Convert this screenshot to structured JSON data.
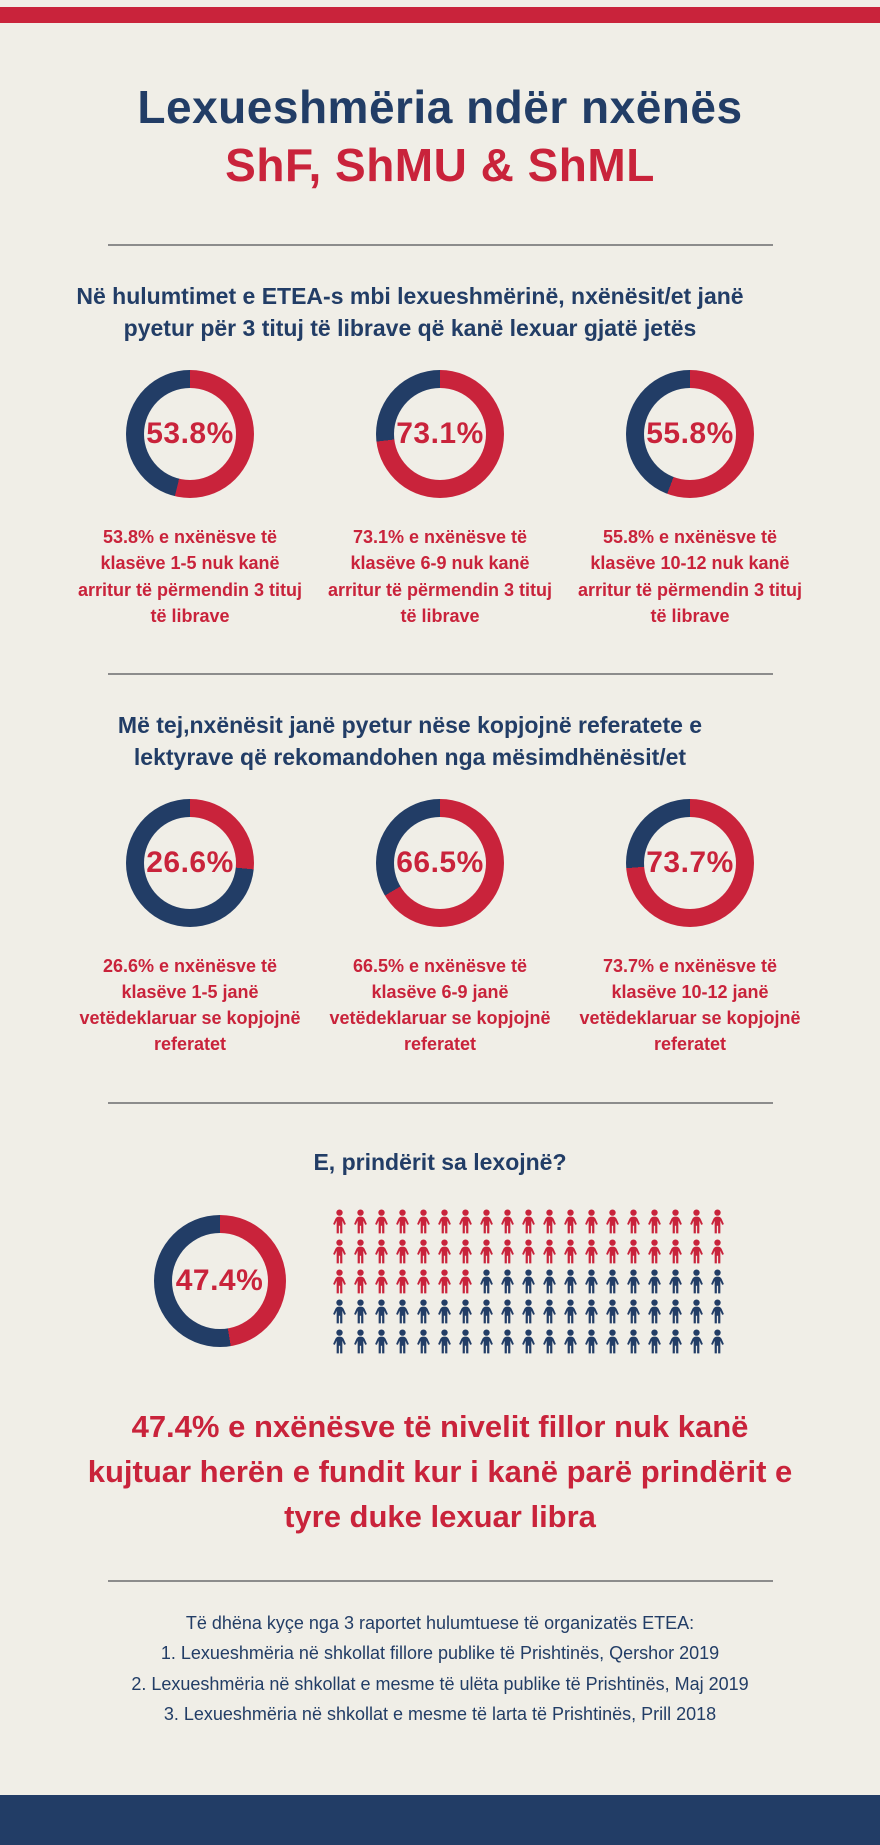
{
  "colors": {
    "red": "#c9233b",
    "navy": "#223d66",
    "background": "#f0eee7",
    "divider": "#8c8c8c"
  },
  "header": {
    "title_line1": "Lexueshmëria ndër nxënës",
    "title_line2": "ShF, ShMU & ShML"
  },
  "section1": {
    "heading": "Në hulumtimet e ETEA-s mbi lexueshmërinë, nxënësit/et janë pyetur për 3 tituj të librave që kanë lexuar gjatë jetës",
    "donuts": [
      {
        "label": "53.8%",
        "percent": 53.8,
        "caption": "53.8% e nxënësve të klasëve 1-5 nuk kanë arritur të përmendin 3 tituj të librave"
      },
      {
        "label": "73.1%",
        "percent": 73.1,
        "caption": "73.1% e nxënësve të klasëve 6-9 nuk kanë arritur të përmendin 3 tituj të librave"
      },
      {
        "label": "55.8%",
        "percent": 55.8,
        "caption": "55.8% e nxënësve të klasëve 10-12 nuk kanë arritur të përmendin 3 tituj të librave"
      }
    ]
  },
  "section2": {
    "heading": "Më tej,nxënësit janë pyetur nëse kopjojnë referatete e lektyrave që rekomandohen nga mësimdhënësit/et",
    "donuts": [
      {
        "label": "26.6%",
        "percent": 26.6,
        "caption": "26.6% e nxënësve të klasëve 1-5 janë vetëdeklaruar se kopjojnë referatet"
      },
      {
        "label": "66.5%",
        "percent": 66.5,
        "caption": "66.5% e nxënësve të klasëve 6-9 janë vetëdeklaruar se kopjojnë referatet"
      },
      {
        "label": "73.7%",
        "percent": 73.7,
        "caption": "73.7% e nxënësve të klasëve 10-12 janë vetëdeklaruar se kopjojnë referatet"
      }
    ]
  },
  "section3": {
    "heading": "E, prindërit sa lexojnë?",
    "donut": {
      "label": "47.4%",
      "percent": 47.4
    },
    "pictogram": {
      "rows": 5,
      "cols": 19,
      "total": 95,
      "red_count": 45,
      "icon": "person-icon"
    },
    "statement": "47.4% e nxënësve të nivelit fillor nuk kanë kujtuar herën e fundit kur i kanë parë prindërit e tyre duke lexuar libra"
  },
  "footer": {
    "lines": [
      "Të dhëna kyçe nga 3 raportet hulumtuese të organizatës ETEA:",
      "1. Lexueshmëria në shkollat fillore publike të Prishtinës, Qershor 2019",
      "2. Lexueshmëria në shkollat e mesme të ulëta publike të Prishtinës, Maj 2019",
      "3. Lexueshmëria në shkollat e mesme të larta të Prishtinës, Prill 2018"
    ]
  },
  "chart_data": [
    {
      "type": "pie",
      "title": "Në hulumtimet e ETEA-s mbi lexueshmërinë, nxënësit/et janë pyetur për 3 tituj të librave që kanë lexuar gjatë jetës",
      "units": "%",
      "legend_position": "none",
      "series": [
        {
          "name": "klasët 1-5",
          "values": [
            53.8,
            46.2
          ],
          "colors": [
            "#c9233b",
            "#223d66"
          ]
        },
        {
          "name": "klasët 6-9",
          "values": [
            73.1,
            26.9
          ],
          "colors": [
            "#c9233b",
            "#223d66"
          ]
        },
        {
          "name": "klasët 10-12",
          "values": [
            55.8,
            44.2
          ],
          "colors": [
            "#c9233b",
            "#223d66"
          ]
        }
      ]
    },
    {
      "type": "pie",
      "title": "Më tej,nxënësit janë pyetur nëse kopjojnë referatete e lektyrave që rekomandohen nga mësimdhënësit/et",
      "units": "%",
      "legend_position": "none",
      "series": [
        {
          "name": "klasët 1-5",
          "values": [
            26.6,
            73.4
          ],
          "colors": [
            "#c9233b",
            "#223d66"
          ]
        },
        {
          "name": "klasët 6-9",
          "values": [
            66.5,
            33.5
          ],
          "colors": [
            "#c9233b",
            "#223d66"
          ]
        },
        {
          "name": "klasët 10-12",
          "values": [
            73.7,
            26.3
          ],
          "colors": [
            "#c9233b",
            "#223d66"
          ]
        }
      ]
    },
    {
      "type": "pie",
      "title": "E, prindërit sa lexojnë?",
      "units": "%",
      "legend_position": "none",
      "series": [
        {
          "name": "nxënës të nivelit fillor",
          "values": [
            47.4,
            52.6
          ],
          "colors": [
            "#c9233b",
            "#223d66"
          ]
        }
      ]
    }
  ]
}
